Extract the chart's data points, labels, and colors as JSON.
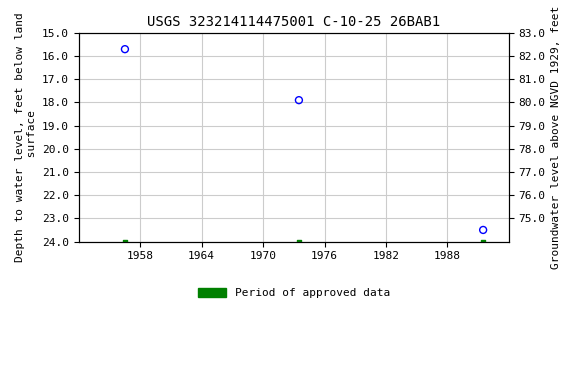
{
  "title": "USGS 323214114475001 C-10-25 26BAB1",
  "ylabel_left": "Depth to water level, feet below land\n surface",
  "ylabel_right": "Groundwater level above NGVD 1929, feet",
  "xlim": [
    1952,
    1994
  ],
  "ylim_left_bottom": 24.0,
  "ylim_left_top": 15.0,
  "ylim_right_top": 83.0,
  "ylim_right_bottom": 74.0,
  "xticks": [
    1958,
    1964,
    1970,
    1976,
    1982,
    1988
  ],
  "yticks_left": [
    15.0,
    16.0,
    17.0,
    18.0,
    19.0,
    20.0,
    21.0,
    22.0,
    23.0,
    24.0
  ],
  "yticks_right": [
    83.0,
    82.0,
    81.0,
    80.0,
    79.0,
    78.0,
    77.0,
    76.0,
    75.0
  ],
  "blue_points_x": [
    1956.5,
    1973.5,
    1991.5
  ],
  "blue_points_y": [
    15.7,
    17.9,
    23.5
  ],
  "green_points_x": [
    1956.5,
    1973.5,
    1991.5
  ],
  "green_points_y": [
    24.0,
    24.0,
    24.0
  ],
  "background_color": "#ffffff",
  "grid_color": "#cccccc",
  "plot_bg_color": "#ffffff",
  "title_fontsize": 10,
  "axis_label_fontsize": 8,
  "tick_fontsize": 8,
  "legend_label": "Period of approved data",
  "legend_color": "#008000",
  "point_color": "#0000ff",
  "point_size": 25,
  "font_family": "monospace"
}
